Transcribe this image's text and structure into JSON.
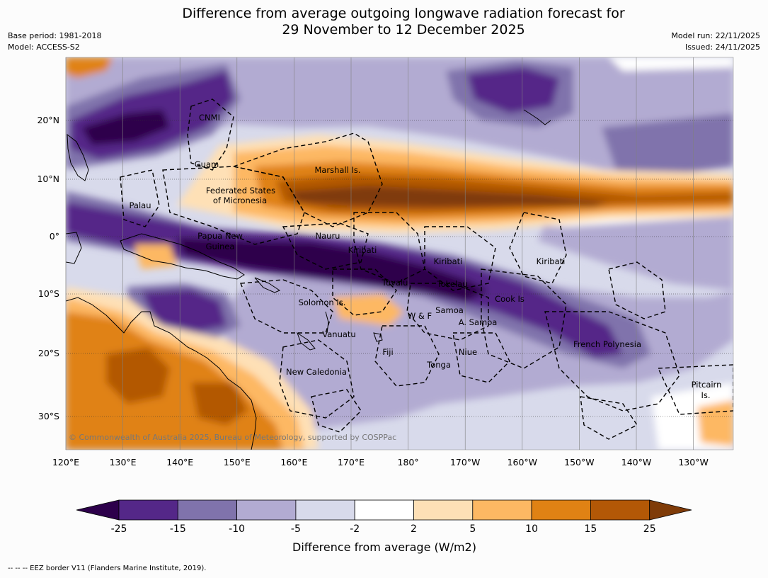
{
  "title": {
    "line1": "Difference from average outgoing longwave radiation forecast for",
    "line2": "29 November to 12 December 2025"
  },
  "meta": {
    "base_period": "Base period: 1981-2018",
    "model": "Model: ACCESS-S2",
    "model_run": "Model run: 22/11/2025",
    "issued": "Issued: 24/11/2025"
  },
  "colors": {
    "c_n25": "#2d004b",
    "c_n15": "#542788",
    "c_n10": "#8073ac",
    "c_n5": "#b2abd2",
    "c_n2": "#d8daeb",
    "c_0": "#ffffff",
    "c_2": "#fee0b6",
    "c_5": "#fdb863",
    "c_10": "#e08214",
    "c_15": "#b35806",
    "c_25": "#7f3b08",
    "land_outline": "#000000",
    "eez_border": "#000000",
    "grid": "#808080"
  },
  "map": {
    "lon_ticks": [
      "120°E",
      "130°E",
      "140°E",
      "150°E",
      "160°E",
      "170°E",
      "180°",
      "170°W",
      "160°W",
      "150°W",
      "140°W",
      "130°W"
    ],
    "lat_ticks": [
      "20°N",
      "10°N",
      "0°",
      "10°S",
      "20°S",
      "30°S"
    ],
    "places": [
      "CNMI",
      "Guam",
      "Marshall Is.",
      "Federated States",
      "of Micronesia",
      "Palau",
      "Papua New",
      "Guinea",
      "Nauru",
      "Kiribati",
      "Kiribati",
      "Kiribati",
      "Tuvalu",
      "Tokelau",
      "Cook Is",
      "Solomon Is.",
      "W & F",
      "Samoa",
      "A. Samoa",
      "Vanuatu",
      "Fiji",
      "Niue",
      "Tonga",
      "French Polynesia",
      "New Caledonia",
      "Pitcairn",
      "Is."
    ],
    "copyright": "© Commonwealth of Australia 2025, Bureau of Meteorology, supported by COSPPac"
  },
  "colorbar": {
    "ticks": [
      "-25",
      "-15",
      "-10",
      "-5",
      "-2",
      "2",
      "5",
      "10",
      "15",
      "25"
    ],
    "label": "Difference from average (W/m2)"
  },
  "footnote": "--  --  -- EEZ border V11 (Flanders Marine Institute, 2019)."
}
